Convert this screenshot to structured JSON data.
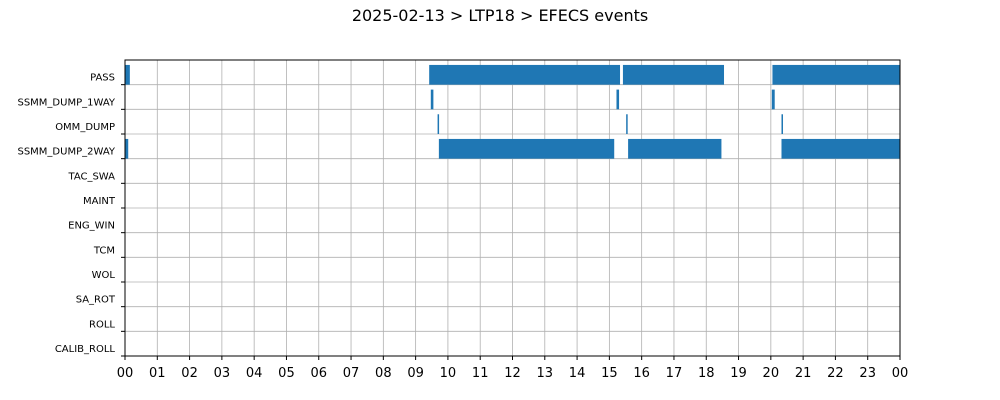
{
  "chart_data": {
    "type": "timeline",
    "title": "2025-02-13 > LTP18 > EFECS events",
    "xlabel": "",
    "ylabel": "",
    "x_unit": "hour",
    "xlim": [
      0,
      24
    ],
    "x_ticks": [
      "00",
      "01",
      "02",
      "03",
      "04",
      "05",
      "06",
      "07",
      "08",
      "09",
      "10",
      "11",
      "12",
      "13",
      "14",
      "15",
      "16",
      "17",
      "18",
      "19",
      "20",
      "21",
      "22",
      "23",
      "00"
    ],
    "grid": true,
    "bar_color": "#1f77b4",
    "categories": [
      "PASS",
      "SSMM_DUMP_1WAY",
      "OMM_DUMP",
      "SSMM_DUMP_2WAY",
      "TAC_SWA",
      "MAINT",
      "ENG_WIN",
      "TCM",
      "WOL",
      "SA_ROT",
      "ROLL",
      "CALIB_ROLL"
    ],
    "series": [
      {
        "name": "PASS",
        "intervals": [
          [
            0.0,
            0.15
          ],
          [
            9.42,
            15.33
          ],
          [
            15.42,
            18.55
          ],
          [
            20.05,
            24.0
          ]
        ]
      },
      {
        "name": "SSMM_DUMP_1WAY",
        "intervals": [
          [
            9.47,
            9.55
          ],
          [
            15.22,
            15.3
          ],
          [
            20.03,
            20.12
          ]
        ]
      },
      {
        "name": "OMM_DUMP",
        "intervals": [
          [
            9.68,
            9.72
          ],
          [
            15.52,
            15.56
          ],
          [
            20.33,
            20.37
          ]
        ]
      },
      {
        "name": "SSMM_DUMP_2WAY",
        "intervals": [
          [
            0.0,
            0.1
          ],
          [
            9.72,
            15.15
          ],
          [
            15.58,
            18.47
          ],
          [
            20.33,
            24.0
          ]
        ]
      },
      {
        "name": "TAC_SWA",
        "intervals": []
      },
      {
        "name": "MAINT",
        "intervals": []
      },
      {
        "name": "ENG_WIN",
        "intervals": []
      },
      {
        "name": "TCM",
        "intervals": []
      },
      {
        "name": "WOL",
        "intervals": []
      },
      {
        "name": "SA_ROT",
        "intervals": []
      },
      {
        "name": "ROLL",
        "intervals": []
      },
      {
        "name": "CALIB_ROLL",
        "intervals": []
      }
    ]
  }
}
